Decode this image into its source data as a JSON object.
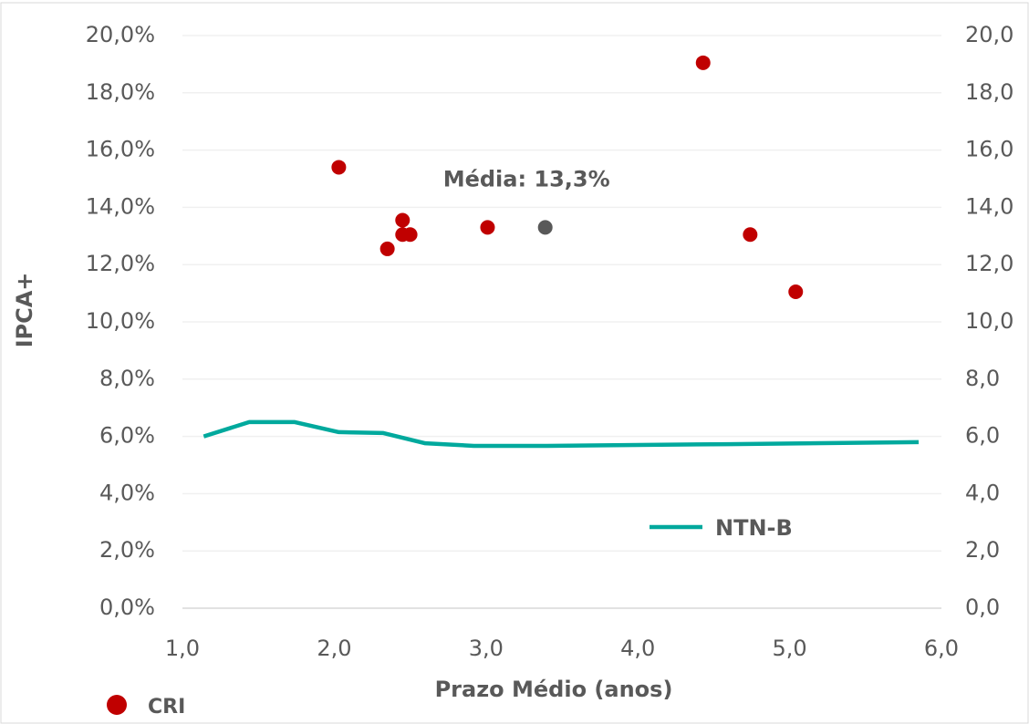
{
  "chart_data": {
    "type": "scatter",
    "xlabel": "Prazo Médio (anos)",
    "ylabel": "IPCA+",
    "xlim": [
      1,
      6
    ],
    "xticks": [
      {
        "value": 1,
        "label": "1,0"
      },
      {
        "value": 2,
        "label": "2,0"
      },
      {
        "value": 3,
        "label": "3,0"
      },
      {
        "value": 4,
        "label": "4,0"
      },
      {
        "value": 5,
        "label": "5,0"
      },
      {
        "value": 6,
        "label": "6,0"
      }
    ],
    "ylim": [
      0,
      20
    ],
    "yticks": [
      {
        "value": 0,
        "label": "0,0%"
      },
      {
        "value": 2,
        "label": "2,0%"
      },
      {
        "value": 4,
        "label": "4,0%"
      },
      {
        "value": 6,
        "label": "6,0%"
      },
      {
        "value": 8,
        "label": "8,0%"
      },
      {
        "value": 10,
        "label": "10,0%"
      },
      {
        "value": 12,
        "label": "12,0%"
      },
      {
        "value": 14,
        "label": "14,0%"
      },
      {
        "value": 16,
        "label": "16,0%"
      },
      {
        "value": 18,
        "label": "18,0%"
      },
      {
        "value": 20,
        "label": "20,0%"
      }
    ],
    "y2lim": [
      0,
      20
    ],
    "y2ticks": [
      {
        "value": 0,
        "label": "0,0"
      },
      {
        "value": 2,
        "label": "2,0"
      },
      {
        "value": 4,
        "label": "4,0"
      },
      {
        "value": 6,
        "label": "6,0"
      },
      {
        "value": 8,
        "label": "8,0"
      },
      {
        "value": 10,
        "label": "10,0"
      },
      {
        "value": 12,
        "label": "12,0"
      },
      {
        "value": 14,
        "label": "14,0"
      },
      {
        "value": 16,
        "label": "16,0"
      },
      {
        "value": 18,
        "label": "18,0"
      },
      {
        "value": 20,
        "label": "20,0"
      }
    ],
    "grid": true,
    "series": [
      {
        "name": "CRI",
        "type": "scatter",
        "color": "#c00000",
        "x": [
          2.03,
          2.35,
          2.45,
          2.45,
          2.5,
          3.01,
          4.43,
          4.74,
          5.04
        ],
        "values": [
          15.4,
          12.55,
          13.55,
          13.05,
          13.05,
          13.3,
          19.05,
          13.05,
          11.05
        ]
      },
      {
        "name": "NTN-B",
        "type": "line",
        "color": "#00a99d",
        "axis": "y2",
        "x": [
          1.14,
          1.44,
          1.74,
          2.03,
          2.32,
          2.6,
          2.92,
          3.4,
          4.6,
          5.85
        ],
        "values": [
          6.0,
          6.5,
          6.5,
          6.15,
          6.12,
          5.76,
          5.67,
          5.67,
          5.73,
          5.8
        ]
      }
    ],
    "mean_point": {
      "x": 3.39,
      "y": 13.3,
      "color": "#595959",
      "label": "Média: 13,3%"
    }
  }
}
